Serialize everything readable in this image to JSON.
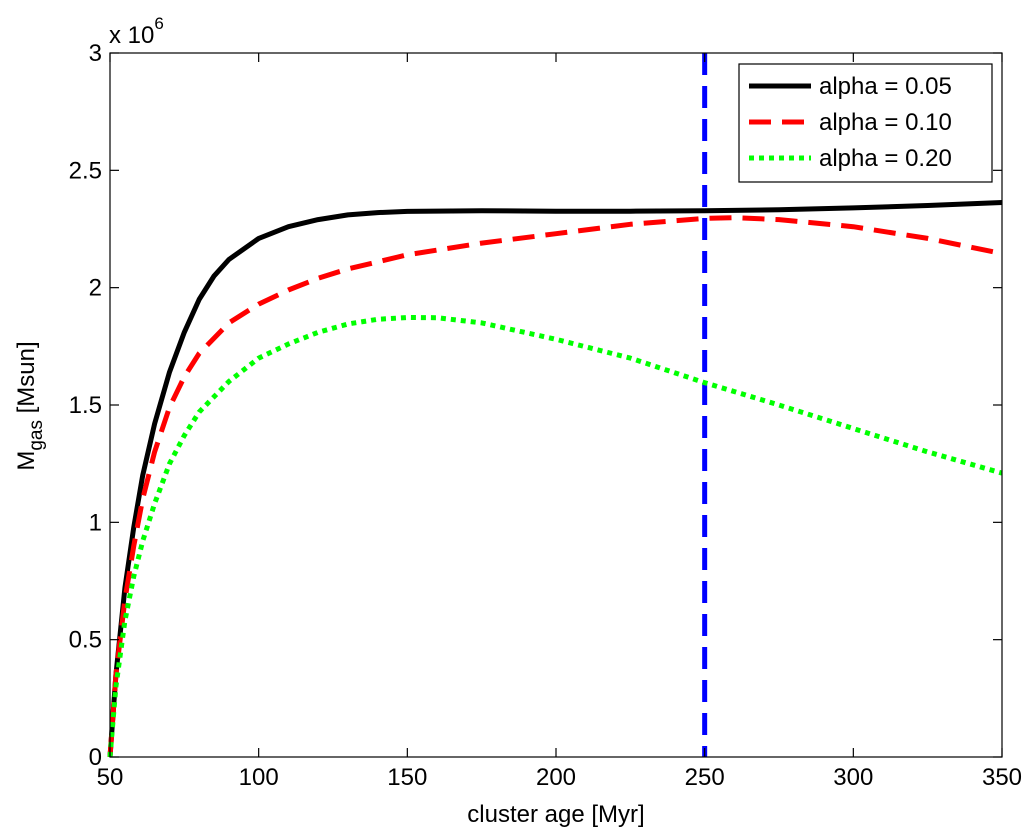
{
  "chart_data": {
    "type": "line",
    "title": "",
    "xlabel": "cluster age [Myr]",
    "ylabel": {
      "main": "M",
      "sub": "gas",
      "suffix": " [Msun]"
    },
    "y_multiplier": {
      "base": "x 10",
      "exponent": "6"
    },
    "xlim": [
      50,
      350
    ],
    "ylim": [
      0,
      3
    ],
    "xticks": [
      50,
      100,
      150,
      200,
      250,
      300,
      350
    ],
    "yticks": [
      0,
      0.5,
      1,
      1.5,
      2,
      2.5,
      3
    ],
    "xtick_labels": [
      "50",
      "100",
      "150",
      "200",
      "250",
      "300",
      "350"
    ],
    "ytick_labels": [
      "0",
      "0.5",
      "1",
      "1.5",
      "2",
      "2.5",
      "3"
    ],
    "grid": false,
    "legend_position": "top-right",
    "series": [
      {
        "name": "alpha = 0.05",
        "color": "#000000",
        "dash": "solid",
        "x": [
          50,
          52,
          55,
          58,
          61,
          65,
          70,
          75,
          80,
          85,
          90,
          100,
          110,
          120,
          130,
          140,
          150,
          175,
          200,
          225,
          250,
          275,
          300,
          325,
          350
        ],
        "y": [
          0,
          0.35,
          0.72,
          0.98,
          1.2,
          1.42,
          1.64,
          1.81,
          1.95,
          2.05,
          2.12,
          2.21,
          2.26,
          2.29,
          2.31,
          2.32,
          2.325,
          2.328,
          2.326,
          2.326,
          2.328,
          2.332,
          2.34,
          2.35,
          2.363
        ]
      },
      {
        "name": "alpha = 0.10",
        "color": "#ff0000",
        "dash": "dashed",
        "x": [
          50,
          52,
          55,
          58,
          61,
          65,
          70,
          75,
          80,
          90,
          100,
          110,
          120,
          130,
          140,
          150,
          175,
          200,
          225,
          250,
          260,
          275,
          300,
          325,
          350
        ],
        "y": [
          0,
          0.35,
          0.67,
          0.9,
          1.1,
          1.3,
          1.49,
          1.62,
          1.72,
          1.85,
          1.93,
          1.99,
          2.04,
          2.08,
          2.11,
          2.14,
          2.19,
          2.23,
          2.27,
          2.295,
          2.298,
          2.29,
          2.26,
          2.21,
          2.145
        ]
      },
      {
        "name": "alpha = 0.20",
        "color": "#00ff00",
        "dash": "dotted",
        "x": [
          50,
          52,
          55,
          58,
          61,
          65,
          70,
          75,
          80,
          90,
          100,
          110,
          120,
          130,
          140,
          150,
          160,
          175,
          200,
          225,
          250,
          275,
          300,
          325,
          350
        ],
        "y": [
          0,
          0.3,
          0.58,
          0.77,
          0.92,
          1.08,
          1.25,
          1.37,
          1.47,
          1.6,
          1.7,
          1.76,
          1.81,
          1.845,
          1.865,
          1.873,
          1.872,
          1.85,
          1.78,
          1.7,
          1.595,
          1.5,
          1.4,
          1.3,
          1.21
        ]
      }
    ],
    "reference_lines": [
      {
        "orientation": "vertical",
        "x": 250,
        "color": "#0000ff",
        "dash": "dashed"
      }
    ]
  }
}
